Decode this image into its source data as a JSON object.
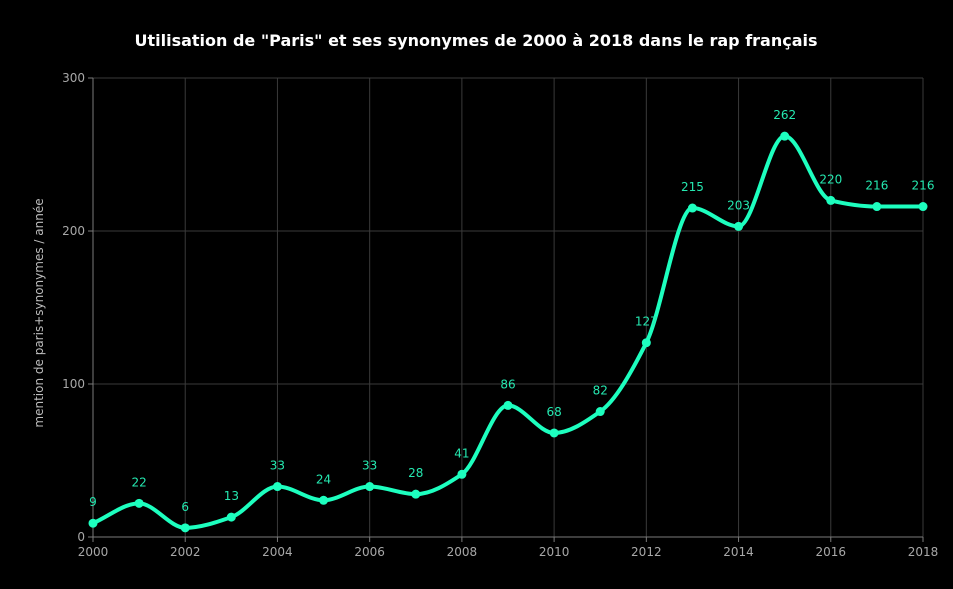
{
  "chart_data": {
    "type": "line",
    "title": "Utilisation de \"Paris\" et ses synonymes de 2000 à 2018 dans le rap français",
    "xlabel": "",
    "ylabel": "mention de paris+synonymes / année",
    "x": [
      2000,
      2001,
      2002,
      2003,
      2004,
      2005,
      2006,
      2007,
      2008,
      2009,
      2010,
      2011,
      2012,
      2013,
      2014,
      2015,
      2016,
      2017,
      2018
    ],
    "series": [
      {
        "values": [
          9,
          22,
          6,
          13,
          33,
          24,
          33,
          28,
          41,
          86,
          68,
          82,
          127,
          215,
          203,
          262,
          220,
          216,
          216
        ]
      }
    ],
    "data_labels": [
      "9",
      "22",
      "6",
      "13",
      "33",
      "24",
      "33",
      "28",
      "41",
      "86",
      "68",
      "82",
      "127",
      "215",
      "203",
      "262",
      "220",
      "216",
      "216"
    ],
    "xlim": [
      2000,
      2018
    ],
    "ylim": [
      0,
      300
    ],
    "x_ticks": [
      "2000",
      "2002",
      "2004",
      "2006",
      "2008",
      "2010",
      "2012",
      "2014",
      "2016",
      "2018"
    ],
    "y_ticks": [
      "0",
      "100",
      "200",
      "300"
    ],
    "grid": true,
    "legend": "none",
    "colors": {
      "background": "#000000",
      "line": "#1dffbf",
      "label": "#25e8b0",
      "grid": "#3a3a3a",
      "axis": "#7a7a7a"
    }
  }
}
